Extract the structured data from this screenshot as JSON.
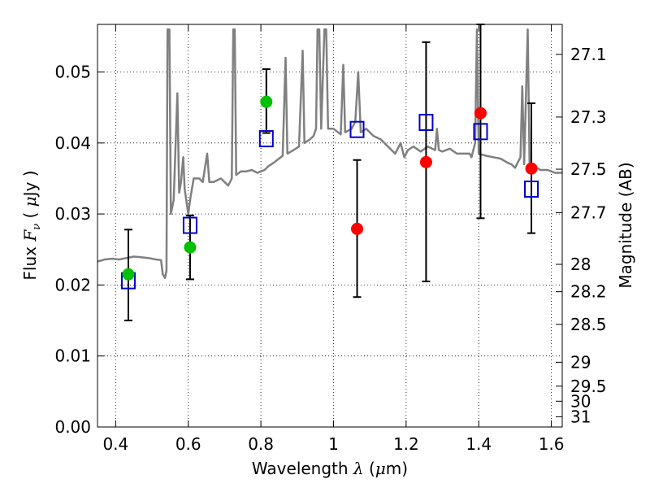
{
  "chart_data": {
    "type": "scatter",
    "xlabel": "Wavelength  λ (μm)",
    "ylabel_left": "Flux  Fν  ( μJy )",
    "ylabel_right": "Magnitude (AB)",
    "xlim": [
      0.35,
      1.63
    ],
    "ylim": [
      0.0,
      0.0567
    ],
    "grid": true,
    "x_ticks": [
      0.4,
      0.6,
      0.8,
      1.0,
      1.2,
      1.4,
      1.6
    ],
    "x_tick_labels": [
      "0.4",
      "0.6",
      "0.8",
      "1",
      "1.2",
      "1.4",
      "1.6"
    ],
    "y_ticks": [
      0.0,
      0.01,
      0.02,
      0.03,
      0.04,
      0.05
    ],
    "y_tick_labels": [
      "0.00",
      "0.01",
      "0.02",
      "0.03",
      "0.04",
      "0.05"
    ],
    "right_ticks": [
      {
        "label": "27.1",
        "mag": 27.1
      },
      {
        "label": "27.3",
        "mag": 27.3
      },
      {
        "label": "27.5",
        "mag": 27.5
      },
      {
        "label": "27.7",
        "mag": 27.7
      },
      {
        "label": "28",
        "mag": 28.0
      },
      {
        "label": "28.2",
        "mag": 28.2
      },
      {
        "label": "28.5",
        "mag": 28.5
      },
      {
        "label": "29",
        "mag": 29.0
      },
      {
        "label": "29.5",
        "mag": 29.5
      },
      {
        "label": "30",
        "mag": 30.0
      },
      {
        "label": "31",
        "mag": 31.0
      }
    ],
    "series": [
      {
        "style": "line",
        "color": "#808080",
        "points": [
          [
            0.35,
            0.0233
          ],
          [
            0.37,
            0.0236
          ],
          [
            0.39,
            0.0237
          ],
          [
            0.41,
            0.0236
          ],
          [
            0.43,
            0.0238
          ],
          [
            0.45,
            0.024
          ],
          [
            0.47,
            0.0239
          ],
          [
            0.49,
            0.0238
          ],
          [
            0.51,
            0.0236
          ],
          [
            0.525,
            0.0235
          ],
          [
            0.53,
            0.0215
          ],
          [
            0.536,
            0.021
          ],
          [
            0.54,
            0.022
          ],
          [
            0.543,
            0.056
          ],
          [
            0.548,
            0.056
          ],
          [
            0.552,
            0.03
          ],
          [
            0.56,
            0.032
          ],
          [
            0.57,
            0.047
          ],
          [
            0.575,
            0.033
          ],
          [
            0.58,
            0.0345
          ],
          [
            0.586,
            0.038
          ],
          [
            0.59,
            0.0335
          ],
          [
            0.6,
            0.03
          ],
          [
            0.605,
            0.032
          ],
          [
            0.615,
            0.035
          ],
          [
            0.63,
            0.035
          ],
          [
            0.64,
            0.0345
          ],
          [
            0.652,
            0.0385
          ],
          [
            0.658,
            0.0345
          ],
          [
            0.67,
            0.0345
          ],
          [
            0.69,
            0.035
          ],
          [
            0.7,
            0.0345
          ],
          [
            0.71,
            0.034
          ],
          [
            0.72,
            0.035
          ],
          [
            0.724,
            0.056
          ],
          [
            0.728,
            0.056
          ],
          [
            0.732,
            0.0355
          ],
          [
            0.745,
            0.036
          ],
          [
            0.76,
            0.036
          ],
          [
            0.775,
            0.0362
          ],
          [
            0.79,
            0.0358
          ],
          [
            0.8,
            0.036
          ],
          [
            0.81,
            0.0362
          ],
          [
            0.82,
            0.0367
          ],
          [
            0.835,
            0.0372
          ],
          [
            0.85,
            0.0378
          ],
          [
            0.86,
            0.0382
          ],
          [
            0.868,
            0.052
          ],
          [
            0.873,
            0.0385
          ],
          [
            0.89,
            0.039
          ],
          [
            0.905,
            0.0395
          ],
          [
            0.915,
            0.053
          ],
          [
            0.92,
            0.04
          ],
          [
            0.935,
            0.0405
          ],
          [
            0.945,
            0.041
          ],
          [
            0.952,
            0.042
          ],
          [
            0.956,
            0.056
          ],
          [
            0.961,
            0.056
          ],
          [
            0.966,
            0.042
          ],
          [
            0.975,
            0.056
          ],
          [
            0.98,
            0.056
          ],
          [
            0.985,
            0.042
          ],
          [
            1.0,
            0.042
          ],
          [
            1.02,
            0.0412
          ],
          [
            1.027,
            0.051
          ],
          [
            1.032,
            0.0415
          ],
          [
            1.05,
            0.042
          ],
          [
            1.06,
            0.043
          ],
          [
            1.068,
            0.05
          ],
          [
            1.075,
            0.0415
          ],
          [
            1.09,
            0.042
          ],
          [
            1.11,
            0.041
          ],
          [
            1.13,
            0.0405
          ],
          [
            1.15,
            0.0395
          ],
          [
            1.17,
            0.0385
          ],
          [
            1.185,
            0.04
          ],
          [
            1.195,
            0.038
          ],
          [
            1.205,
            0.039
          ],
          [
            1.22,
            0.0395
          ],
          [
            1.24,
            0.0388
          ],
          [
            1.26,
            0.0395
          ],
          [
            1.28,
            0.039
          ],
          [
            1.285,
            0.042
          ],
          [
            1.29,
            0.039
          ],
          [
            1.3,
            0.0388
          ],
          [
            1.32,
            0.0392
          ],
          [
            1.34,
            0.0385
          ],
          [
            1.36,
            0.0385
          ],
          [
            1.375,
            0.0385
          ],
          [
            1.38,
            0.038
          ],
          [
            1.39,
            0.04
          ],
          [
            1.395,
            0.056
          ],
          [
            1.4,
            0.0385
          ],
          [
            1.42,
            0.0382
          ],
          [
            1.44,
            0.038
          ],
          [
            1.46,
            0.0378
          ],
          [
            1.48,
            0.0372
          ],
          [
            1.49,
            0.037
          ],
          [
            1.5,
            0.0365
          ],
          [
            1.515,
            0.038
          ],
          [
            1.52,
            0.048
          ],
          [
            1.525,
            0.037
          ],
          [
            1.535,
            0.056
          ],
          [
            1.54,
            0.037
          ],
          [
            1.55,
            0.0368
          ],
          [
            1.56,
            0.0365
          ],
          [
            1.57,
            0.0362
          ],
          [
            1.58,
            0.0362
          ],
          [
            1.59,
            0.0362
          ],
          [
            1.6,
            0.036
          ],
          [
            1.61,
            0.0358
          ],
          [
            1.63,
            0.0358
          ]
        ]
      },
      {
        "style": "marker",
        "marker": "circle",
        "color": "#00c000",
        "points": [
          {
            "x": 0.435,
            "y": 0.0215
          },
          {
            "x": 0.605,
            "y": 0.0253
          },
          {
            "x": 0.815,
            "y": 0.0458
          }
        ]
      },
      {
        "style": "marker",
        "marker": "circle",
        "color": "#ff0000",
        "points": [
          {
            "x": 1.065,
            "y": 0.0279
          },
          {
            "x": 1.255,
            "y": 0.0373
          },
          {
            "x": 1.405,
            "y": 0.0442
          },
          {
            "x": 1.545,
            "y": 0.0364
          }
        ]
      },
      {
        "style": "marker",
        "marker": "open-square",
        "color": "#0000cc",
        "points": [
          {
            "x": 0.435,
            "y": 0.0206
          },
          {
            "x": 0.605,
            "y": 0.0284
          },
          {
            "x": 0.815,
            "y": 0.0406
          },
          {
            "x": 1.065,
            "y": 0.0419
          },
          {
            "x": 1.255,
            "y": 0.0429
          },
          {
            "x": 1.405,
            "y": 0.0416
          },
          {
            "x": 1.545,
            "y": 0.0335
          }
        ]
      },
      {
        "style": "errorbar",
        "color": "#000000",
        "points": [
          {
            "x": 0.435,
            "low": 0.015,
            "high": 0.0278
          },
          {
            "x": 0.605,
            "low": 0.0208,
            "high": 0.0298
          },
          {
            "x": 0.815,
            "low": 0.0414,
            "high": 0.0504
          },
          {
            "x": 1.065,
            "low": 0.0183,
            "high": 0.0376
          },
          {
            "x": 1.255,
            "low": 0.0205,
            "high": 0.0542
          },
          {
            "x": 1.405,
            "low": 0.0294,
            "high": 0.0567
          },
          {
            "x": 1.545,
            "low": 0.0273,
            "high": 0.0456
          }
        ]
      }
    ]
  }
}
